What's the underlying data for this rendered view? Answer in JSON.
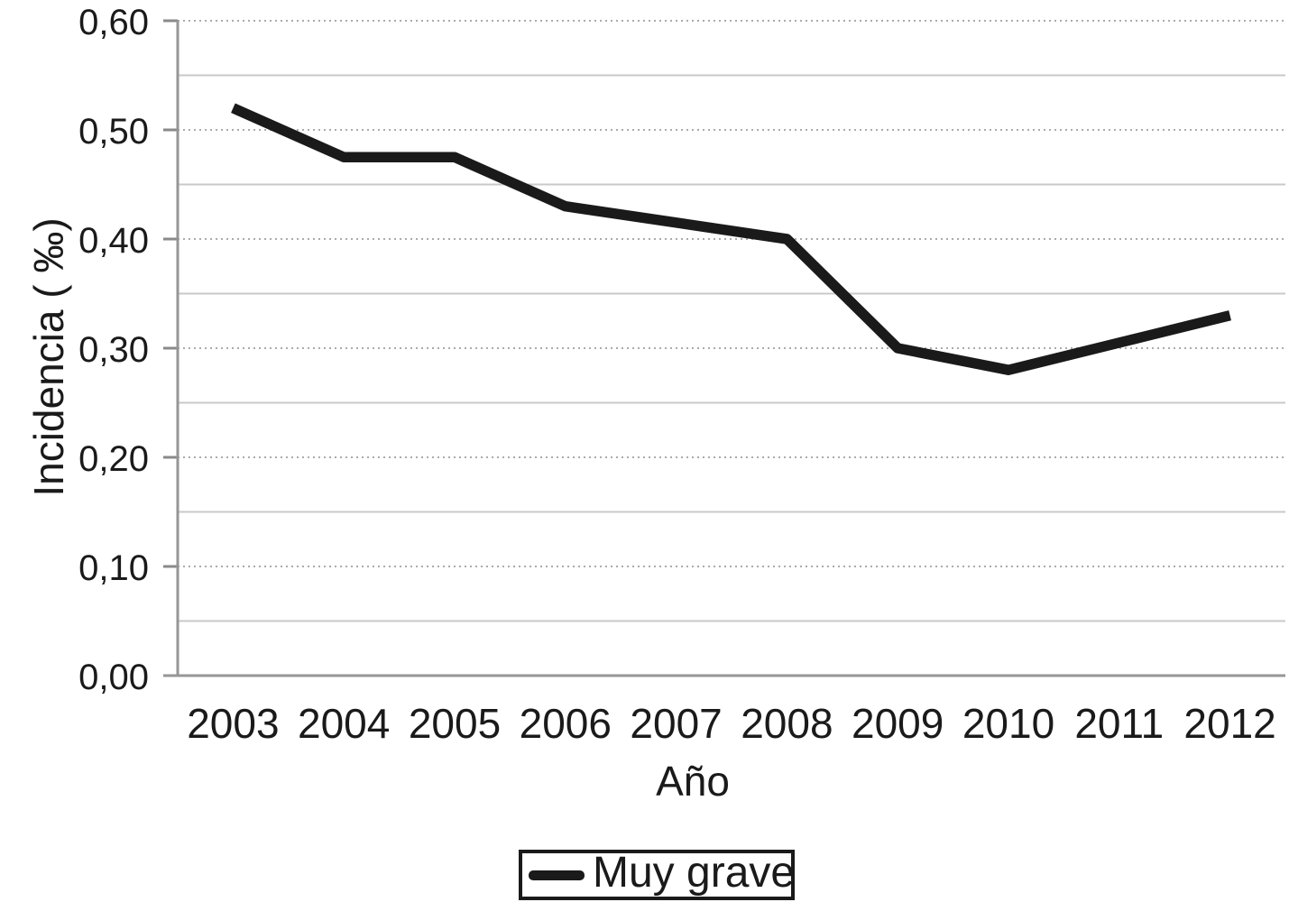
{
  "chart_data": {
    "type": "line",
    "title": "",
    "xlabel": "Año",
    "ylabel": "Incidencia ( ‰)",
    "categories": [
      "2003",
      "2004",
      "2005",
      "2006",
      "2007",
      "2008",
      "2009",
      "2010",
      "2011",
      "2012"
    ],
    "series": [
      {
        "name": "Muy grave",
        "values": [
          0.52,
          0.475,
          0.475,
          0.43,
          0.415,
          0.4,
          0.3,
          0.28,
          0.305,
          0.33
        ]
      }
    ],
    "ylim": [
      0.0,
      0.6
    ],
    "ytick_step": 0.1,
    "ytick_labels": [
      "0,00",
      "0,10",
      "0,20",
      "0,30",
      "0,40",
      "0,50",
      "0,60"
    ],
    "decimal_separator": ",",
    "grid": {
      "orientation": "horizontal",
      "major_interval": 0.1,
      "major_style": "dotted",
      "minor_interval": 0.05,
      "minor_style": "solid-light"
    },
    "legend": {
      "position": "bottom-center",
      "boxed": true,
      "entries": [
        "Muy grave"
      ]
    },
    "line_color": "#1a1a1a",
    "grid_major_color": "#ababab",
    "grid_minor_color": "#c9c9c9",
    "axis_color": "#969696"
  }
}
